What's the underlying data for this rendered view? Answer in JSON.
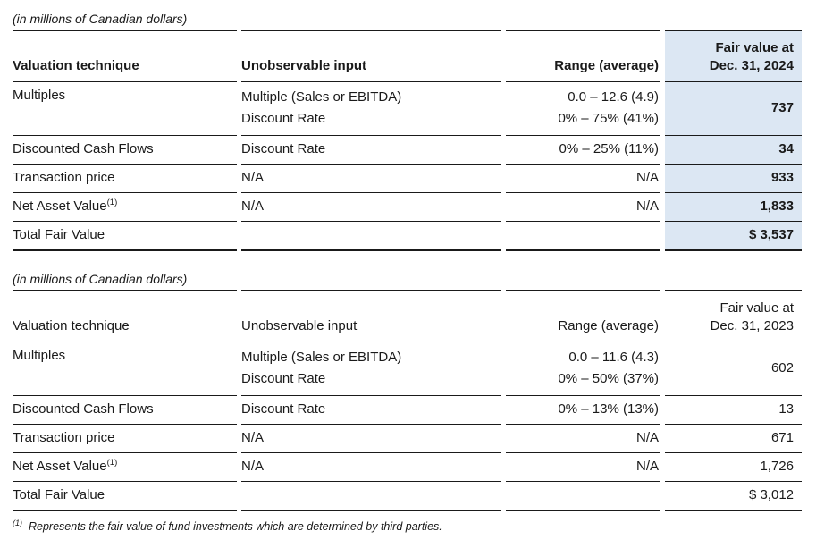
{
  "colors": {
    "highlight": "#dce7f3",
    "rule": "#1a1a1a",
    "text": "#1a1a1a"
  },
  "tables": [
    {
      "caption": "(in millions of Canadian dollars)",
      "header": {
        "technique": "Valuation technique",
        "input": "Unobservable input",
        "range": "Range (average)",
        "fair_line1": "Fair value at",
        "fair_line2": "Dec. 31, 2024"
      },
      "rows": {
        "multiples": {
          "technique": "Multiples",
          "input_line1": "Multiple (Sales or EBITDA)",
          "input_line2": "Discount Rate",
          "range_line1": "0.0 – 12.6 (4.9)",
          "range_line2": "0% – 75% (41%)",
          "fair": "737"
        },
        "dcf": {
          "technique": "Discounted Cash Flows",
          "input": "Discount Rate",
          "range": "0% – 25% (11%)",
          "fair": "34"
        },
        "transaction": {
          "technique": "Transaction price",
          "input": "N/A",
          "range": "N/A",
          "fair": "933"
        },
        "nav": {
          "technique": "Net Asset Value",
          "marker": "(1)",
          "input": "N/A",
          "range": "N/A",
          "fair": "1,833"
        },
        "total": {
          "label": "Total Fair Value",
          "fair": "$ 3,537"
        }
      }
    },
    {
      "caption": "(in millions of Canadian dollars)",
      "header": {
        "technique": "Valuation technique",
        "input": "Unobservable input",
        "range": "Range (average)",
        "fair_line1": "Fair value at",
        "fair_line2": "Dec. 31, 2023"
      },
      "rows": {
        "multiples": {
          "technique": "Multiples",
          "input_line1": "Multiple (Sales or EBITDA)",
          "input_line2": "Discount Rate",
          "range_line1": "0.0 – 11.6 (4.3)",
          "range_line2": "0% – 50% (37%)",
          "fair": "602"
        },
        "dcf": {
          "technique": "Discounted Cash Flows",
          "input": "Discount Rate",
          "range": "0% – 13% (13%)",
          "fair": "13"
        },
        "transaction": {
          "technique": "Transaction price",
          "input": "N/A",
          "range": "N/A",
          "fair": "671"
        },
        "nav": {
          "technique": "Net Asset Value",
          "marker": "(1)",
          "input": "N/A",
          "range": "N/A",
          "fair": "1,726"
        },
        "total": {
          "label": "Total Fair Value",
          "fair": "$ 3,012"
        }
      }
    }
  ],
  "footnote": {
    "marker": "(1)",
    "text": "Represents the fair value of fund investments which are determined by third parties."
  }
}
